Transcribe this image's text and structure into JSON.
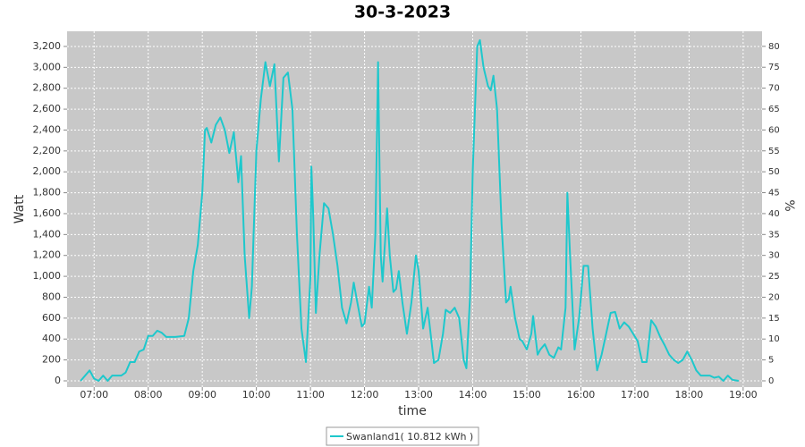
{
  "chart_data": {
    "type": "line",
    "title": "30-3-2023",
    "x_label": "time",
    "y_label": "Watt",
    "y2_label": "%",
    "xlim": [
      "06:30",
      "19:21"
    ],
    "xticks": [
      "07:00",
      "08:00",
      "09:00",
      "10:00",
      "11:00",
      "12:00",
      "13:00",
      "14:00",
      "15:00",
      "16:00",
      "17:00",
      "18:00",
      "19:00"
    ],
    "ylim": [
      -60,
      3345
    ],
    "yticks": [
      0,
      200,
      400,
      600,
      800,
      {
        "value": 1000,
        "label": "1,000"
      },
      {
        "value": 1200,
        "label": "1,200"
      },
      {
        "value": 1400,
        "label": "1,400"
      },
      {
        "value": 1600,
        "label": "1,600"
      },
      {
        "value": 1800,
        "label": "1,800"
      },
      {
        "value": 2000,
        "label": "2,000"
      },
      {
        "value": 2200,
        "label": "2,200"
      },
      {
        "value": 2400,
        "label": "2,400"
      },
      {
        "value": 2600,
        "label": "2,600"
      },
      {
        "value": 2800,
        "label": "2,800"
      },
      {
        "value": 3000,
        "label": "3,000"
      },
      {
        "value": 3200,
        "label": "3,200"
      }
    ],
    "y2lim": [
      -1.5,
      83.6
    ],
    "y2ticks": [
      0,
      5,
      10,
      15,
      20,
      25,
      30,
      35,
      40,
      45,
      50,
      55,
      60,
      65,
      70,
      75,
      80
    ],
    "grid": true,
    "legend": "bottom",
    "x": [
      "06:45",
      "06:55",
      "07:00",
      "07:05",
      "07:10",
      "07:15",
      "07:20",
      "07:30",
      "07:35",
      "07:40",
      "07:45",
      "07:50",
      "07:55",
      "08:00",
      "08:05",
      "08:10",
      "08:15",
      "08:20",
      "08:30",
      "08:40",
      "08:45",
      "08:50",
      "08:55",
      "09:00",
      "09:03",
      "09:05",
      "09:10",
      "09:15",
      "09:20",
      "09:25",
      "09:30",
      "09:35",
      "09:40",
      "09:43",
      "09:47",
      "09:52",
      "09:55",
      "10:00",
      "10:05",
      "10:10",
      "10:15",
      "10:20",
      "10:25",
      "10:30",
      "10:35",
      "10:40",
      "10:45",
      "10:50",
      "10:55",
      "11:00",
      "11:01",
      "11:03",
      "11:06",
      "11:10",
      "11:15",
      "11:20",
      "11:25",
      "11:30",
      "11:35",
      "11:40",
      "11:45",
      "11:48",
      "11:52",
      "11:57",
      "12:00",
      "12:05",
      "12:08",
      "12:12",
      "12:15",
      "12:18",
      "12:20",
      "12:25",
      "12:28",
      "12:32",
      "12:35",
      "12:38",
      "12:42",
      "12:47",
      "12:52",
      "12:57",
      "13:00",
      "13:05",
      "13:10",
      "13:12",
      "13:17",
      "13:22",
      "13:27",
      "13:30",
      "13:35",
      "13:40",
      "13:45",
      "13:50",
      "13:53",
      "13:57",
      "14:00",
      "14:05",
      "14:08",
      "14:12",
      "14:17",
      "14:20",
      "14:23",
      "14:27",
      "14:32",
      "14:37",
      "14:40",
      "14:42",
      "14:47",
      "14:52",
      "14:55",
      "15:00",
      "15:05",
      "15:07",
      "15:12",
      "15:15",
      "15:20",
      "15:25",
      "15:30",
      "15:35",
      "15:38",
      "15:43",
      "15:45",
      "15:48",
      "15:53",
      "15:58",
      "16:03",
      "16:08",
      "16:13",
      "16:18",
      "16:23",
      "16:28",
      "16:33",
      "16:38",
      "16:43",
      "16:48",
      "16:53",
      "16:58",
      "17:03",
      "17:08",
      "17:13",
      "17:18",
      "17:23",
      "17:28",
      "17:33",
      "17:38",
      "17:43",
      "17:48",
      "17:53",
      "17:58",
      "18:03",
      "18:08",
      "18:13",
      "18:18",
      "18:23",
      "18:28",
      "18:33",
      "18:38",
      "18:43",
      "18:48",
      "18:55"
    ],
    "series": [
      {
        "name": "Swanland1( 10.812 kWh )",
        "color": "#1ec8cc",
        "values": [
          0,
          100,
          20,
          0,
          50,
          0,
          50,
          50,
          80,
          180,
          180,
          280,
          300,
          430,
          430,
          480,
          460,
          420,
          420,
          430,
          600,
          1050,
          1300,
          1800,
          2400,
          2420,
          2280,
          2450,
          2520,
          2400,
          2180,
          2380,
          1900,
          2150,
          1200,
          600,
          900,
          2200,
          2700,
          3050,
          2820,
          3030,
          2100,
          2900,
          2950,
          2600,
          1400,
          500,
          180,
          1000,
          2050,
          1600,
          650,
          1200,
          1700,
          1650,
          1400,
          1100,
          700,
          550,
          750,
          940,
          750,
          520,
          550,
          900,
          700,
          1400,
          3050,
          1200,
          950,
          1650,
          1200,
          850,
          880,
          1050,
          750,
          450,
          750,
          1200,
          1050,
          500,
          700,
          550,
          170,
          200,
          450,
          680,
          650,
          700,
          600,
          200,
          120,
          800,
          2000,
          3200,
          3260,
          3000,
          2820,
          2780,
          2920,
          2600,
          1500,
          750,
          780,
          900,
          600,
          400,
          380,
          300,
          450,
          620,
          250,
          300,
          350,
          250,
          220,
          320,
          300,
          700,
          1800,
          1200,
          300,
          600,
          1100,
          1100,
          500,
          100,
          250,
          450,
          650,
          660,
          500,
          560,
          520,
          450,
          380,
          180,
          180,
          580,
          520,
          420,
          340,
          250,
          200,
          170,
          200,
          280,
          200,
          100,
          50,
          50,
          50,
          30,
          40,
          0,
          50,
          10,
          0
        ]
      }
    ]
  }
}
